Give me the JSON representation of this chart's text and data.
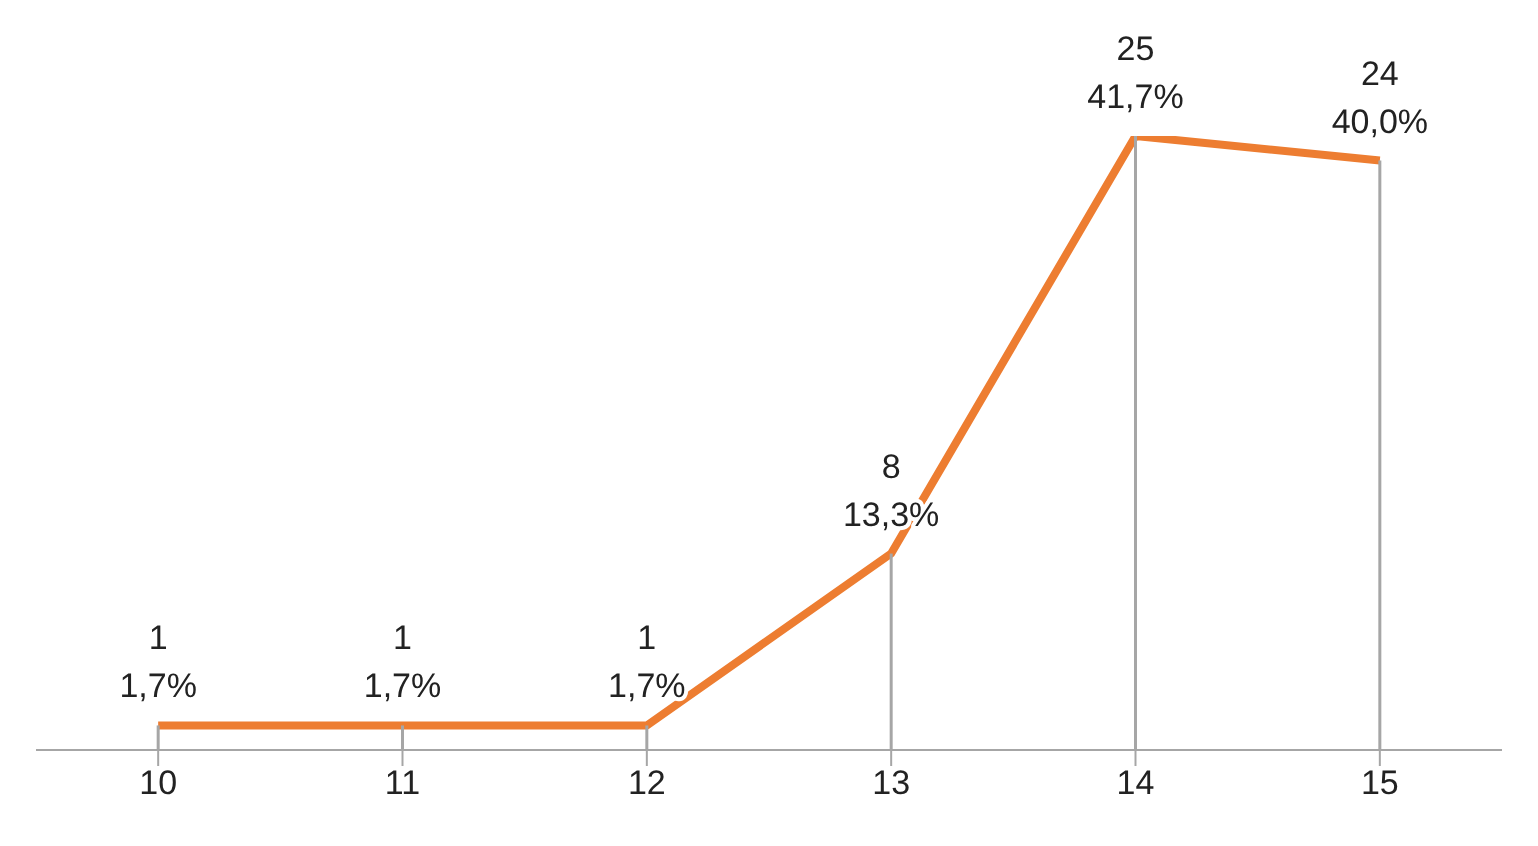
{
  "chart_data": {
    "type": "line",
    "categories": [
      "10",
      "11",
      "12",
      "13",
      "14",
      "15"
    ],
    "series": [
      {
        "color": "#ed7d31",
        "values": [
          1,
          1,
          1,
          8,
          25,
          24
        ],
        "value_labels": [
          "1\n1,7%",
          "1\n1,7%",
          "1\n1,7%",
          "8\n13,3%",
          "25\n41,7%",
          "24\n40,0%"
        ]
      }
    ],
    "marker": "none",
    "grid": "x",
    "tick_labels": "x"
  }
}
